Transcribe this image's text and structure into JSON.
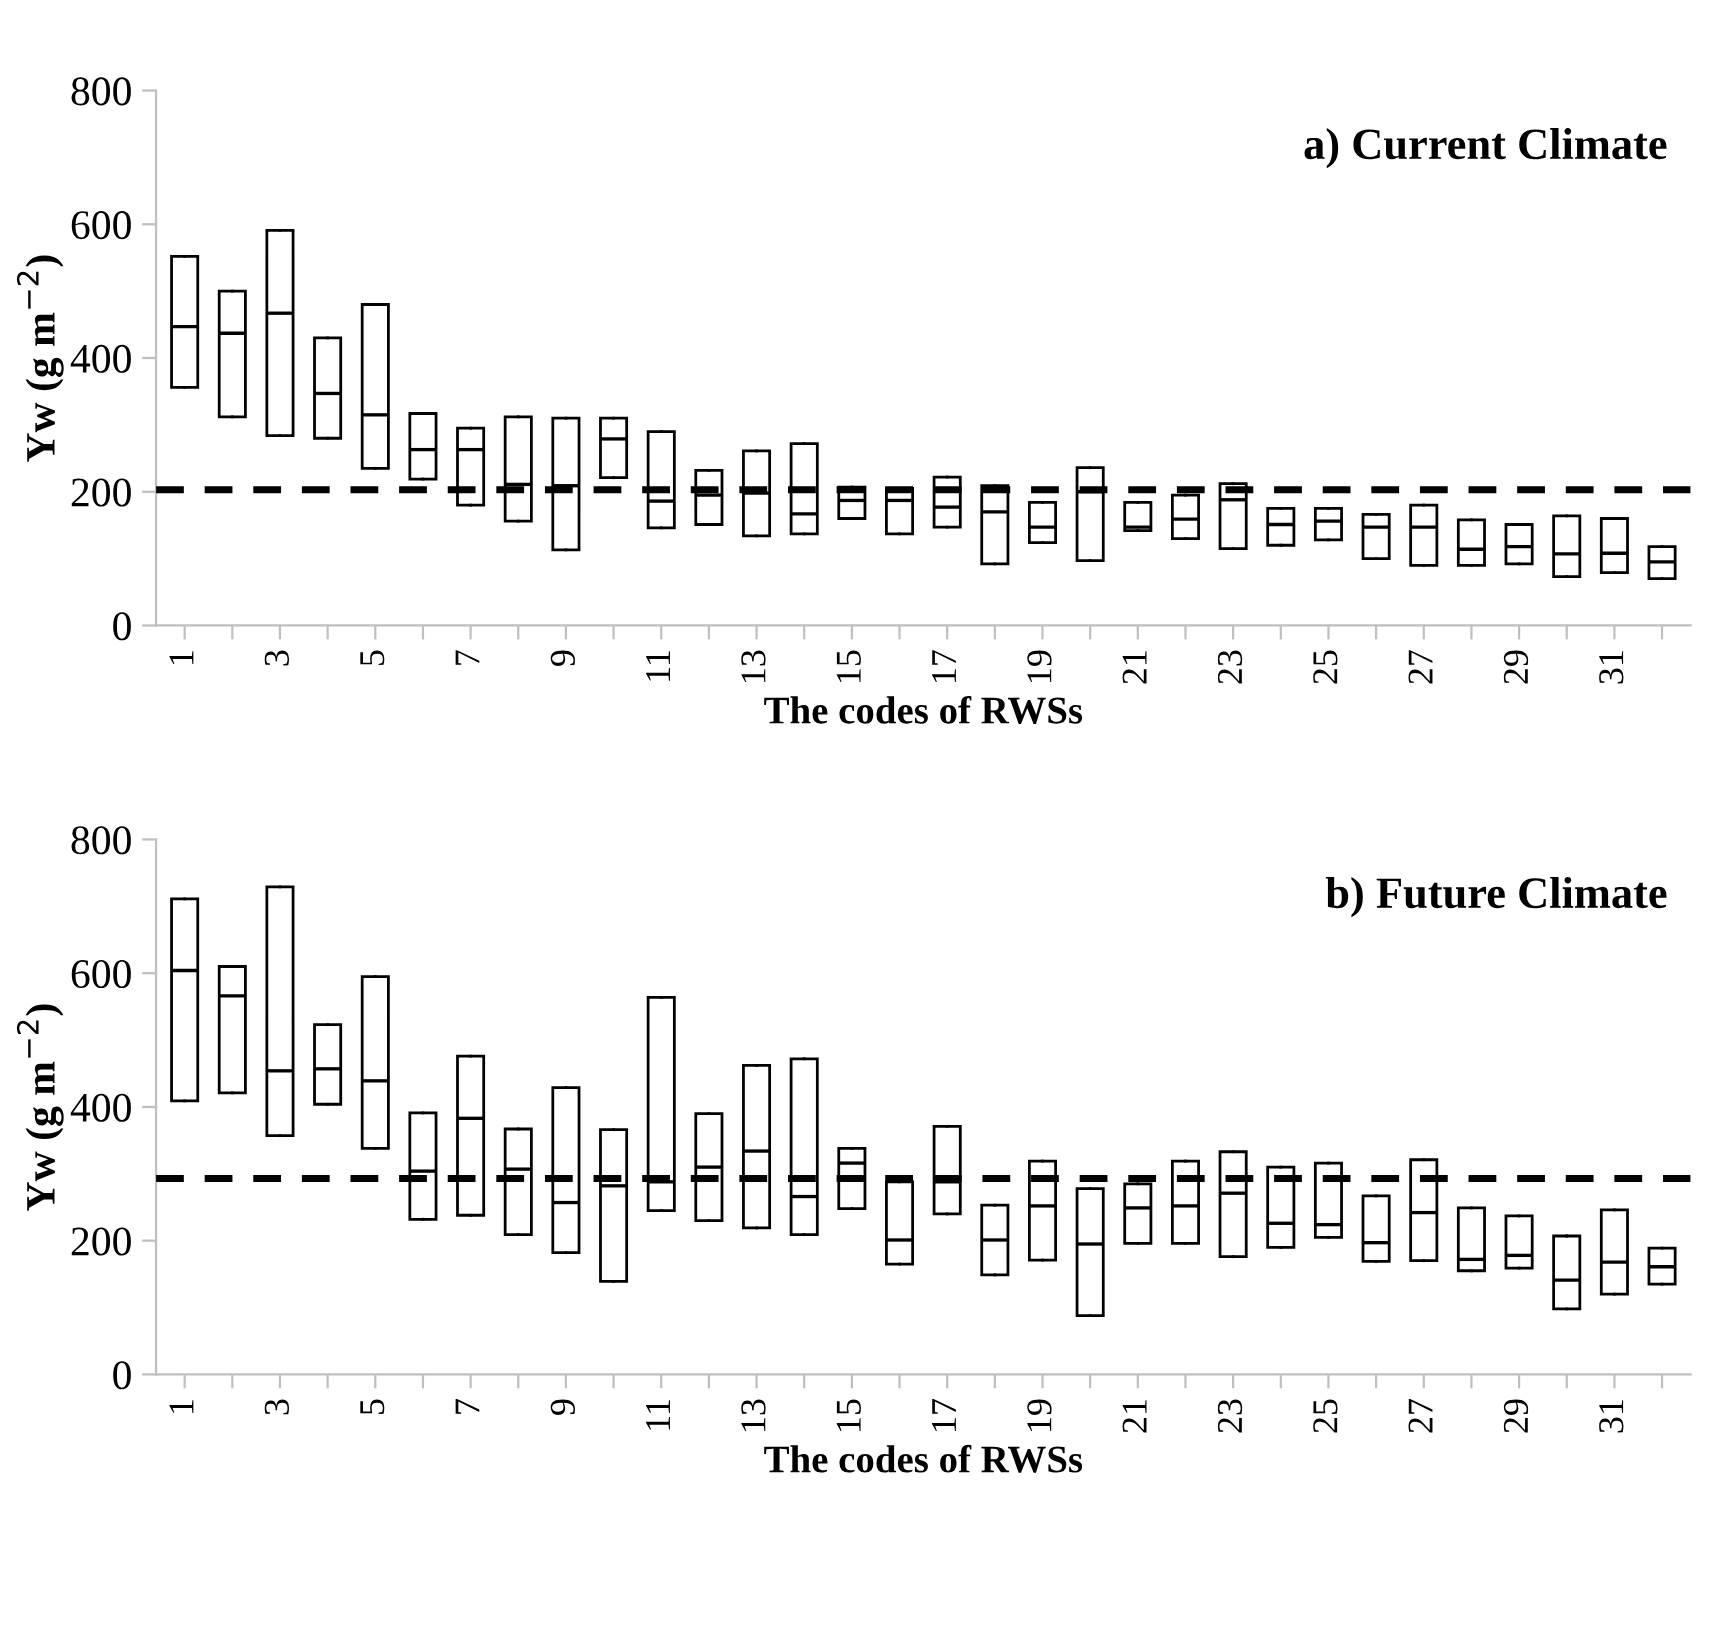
{
  "chart_data": [
    {
      "type": "box",
      "title": "a) Current Climate",
      "xlabel": "The codes of RWSs",
      "ylabel": "Yw (g m$^{−2}$)",
      "ylim": [
        0,
        800
      ],
      "yticks": [
        0,
        200,
        400,
        600,
        800
      ],
      "grid": false,
      "categories": [
        "1",
        null,
        "3",
        null,
        "5",
        null,
        "7",
        null,
        "9",
        null,
        "11",
        null,
        "13",
        null,
        "15",
        null,
        "17",
        null,
        "19",
        null,
        "21",
        null,
        "23",
        null,
        "25",
        null,
        "27",
        null,
        "29",
        null,
        "31",
        null
      ],
      "series": [
        {
          "color": "#000000",
          "boxes": [
            {
              "low": 356,
              "q1": 356,
              "median": 447,
              "q3": 552,
              "high": 552
            },
            {
              "low": 312,
              "q1": 312,
              "median": 437,
              "q3": 500,
              "high": 500
            },
            {
              "low": 284,
              "q1": 284,
              "median": 467,
              "q3": 591,
              "high": 591
            },
            {
              "low": 280,
              "q1": 280,
              "median": 347,
              "q3": 430,
              "high": 430
            },
            {
              "low": 235,
              "q1": 235,
              "median": 315,
              "q3": 480,
              "high": 480
            },
            {
              "low": 219,
              "q1": 219,
              "median": 263,
              "q3": 317,
              "high": 317
            },
            {
              "low": 180,
              "q1": 180,
              "median": 263,
              "q3": 295,
              "high": 295
            },
            {
              "low": 156,
              "q1": 156,
              "median": 211,
              "q3": 312,
              "high": 312
            },
            {
              "low": 113,
              "q1": 113,
              "median": 209,
              "q3": 310,
              "high": 310
            },
            {
              "low": 221,
              "q1": 221,
              "median": 279,
              "q3": 310,
              "high": 310
            },
            {
              "low": 146,
              "q1": 146,
              "median": 186,
              "q3": 290,
              "high": 290
            },
            {
              "low": 151,
              "q1": 151,
              "median": 195,
              "q3": 232,
              "high": 232
            },
            {
              "low": 134,
              "q1": 134,
              "median": 198,
              "q3": 261,
              "high": 261
            },
            {
              "low": 137,
              "q1": 137,
              "median": 167,
              "q3": 272,
              "high": 272
            },
            {
              "low": 160,
              "q1": 160,
              "median": 187,
              "q3": 207,
              "high": 207
            },
            {
              "low": 137,
              "q1": 137,
              "median": 187,
              "q3": 205,
              "high": 205
            },
            {
              "low": 147,
              "q1": 147,
              "median": 177,
              "q3": 222,
              "high": 222
            },
            {
              "low": 92,
              "q1": 92,
              "median": 170,
              "q3": 209,
              "high": 209
            },
            {
              "low": 124,
              "q1": 124,
              "median": 147,
              "q3": 184,
              "high": 184
            },
            {
              "low": 97,
              "q1": 97,
              "median": 200,
              "q3": 236,
              "high": 236
            },
            {
              "low": 142,
              "q1": 142,
              "median": 147,
              "q3": 184,
              "high": 184
            },
            {
              "low": 130,
              "q1": 130,
              "median": 159,
              "q3": 195,
              "high": 195
            },
            {
              "low": 115,
              "q1": 115,
              "median": 188,
              "q3": 212,
              "high": 212
            },
            {
              "low": 120,
              "q1": 120,
              "median": 151,
              "q3": 175,
              "high": 175
            },
            {
              "low": 128,
              "q1": 128,
              "median": 156,
              "q3": 175,
              "high": 175
            },
            {
              "low": 100,
              "q1": 100,
              "median": 147,
              "q3": 166,
              "high": 166
            },
            {
              "low": 90,
              "q1": 90,
              "median": 147,
              "q3": 180,
              "high": 180
            },
            {
              "low": 90,
              "q1": 90,
              "median": 114,
              "q3": 158,
              "high": 158
            },
            {
              "low": 92,
              "q1": 92,
              "median": 118,
              "q3": 151,
              "high": 151
            },
            {
              "low": 73,
              "q1": 73,
              "median": 107,
              "q3": 164,
              "high": 164
            },
            {
              "low": 79,
              "q1": 79,
              "median": 108,
              "q3": 160,
              "high": 160
            },
            {
              "low": 70,
              "q1": 70,
              "median": 95,
              "q3": 118,
              "high": 118
            }
          ]
        }
      ],
      "ref_lines": [
        {
          "axis": "y",
          "value": 203,
          "color": "#000000",
          "line_style": "dashed"
        }
      ]
    },
    {
      "type": "box",
      "title": "b) Future Climate",
      "xlabel": "The codes of RWSs",
      "ylabel": "Yw (g m$^{−2}$)",
      "ylim": [
        0,
        800
      ],
      "yticks": [
        0,
        200,
        400,
        600,
        800
      ],
      "grid": false,
      "categories": [
        "1",
        null,
        "3",
        null,
        "5",
        null,
        "7",
        null,
        "9",
        null,
        "11",
        null,
        "13",
        null,
        "15",
        null,
        "17",
        null,
        "19",
        null,
        "21",
        null,
        "23",
        null,
        "25",
        null,
        "27",
        null,
        "29",
        null,
        "31",
        null
      ],
      "series": [
        {
          "color": "#000000",
          "boxes": [
            {
              "low": 409,
              "q1": 409,
              "median": 604,
              "q3": 711,
              "high": 711
            },
            {
              "low": 421,
              "q1": 421,
              "median": 566,
              "q3": 610,
              "high": 610
            },
            {
              "low": 357,
              "q1": 357,
              "median": 454,
              "q3": 729,
              "high": 729
            },
            {
              "low": 404,
              "q1": 404,
              "median": 457,
              "q3": 523,
              "high": 523
            },
            {
              "low": 338,
              "q1": 338,
              "median": 439,
              "q3": 595,
              "high": 595
            },
            {
              "low": 232,
              "q1": 232,
              "median": 304,
              "q3": 391,
              "high": 391
            },
            {
              "low": 238,
              "q1": 238,
              "median": 383,
              "q3": 476,
              "high": 476
            },
            {
              "low": 209,
              "q1": 209,
              "median": 307,
              "q3": 367,
              "high": 367
            },
            {
              "low": 182,
              "q1": 182,
              "median": 257,
              "q3": 429,
              "high": 429
            },
            {
              "low": 139,
              "q1": 139,
              "median": 282,
              "q3": 366,
              "high": 366
            },
            {
              "low": 245,
              "q1": 245,
              "median": 288,
              "q3": 564,
              "high": 564
            },
            {
              "low": 230,
              "q1": 230,
              "median": 310,
              "q3": 390,
              "high": 390
            },
            {
              "low": 219,
              "q1": 219,
              "median": 334,
              "q3": 462,
              "high": 462
            },
            {
              "low": 209,
              "q1": 209,
              "median": 266,
              "q3": 472,
              "high": 472
            },
            {
              "low": 248,
              "q1": 248,
              "median": 316,
              "q3": 338,
              "high": 338
            },
            {
              "low": 165,
              "q1": 165,
              "median": 201,
              "q3": 288,
              "high": 288
            },
            {
              "low": 240,
              "q1": 240,
              "median": 288,
              "q3": 371,
              "high": 371
            },
            {
              "low": 149,
              "q1": 149,
              "median": 201,
              "q3": 253,
              "high": 253
            },
            {
              "low": 171,
              "q1": 171,
              "median": 252,
              "q3": 319,
              "high": 319
            },
            {
              "low": 88,
              "q1": 88,
              "median": 195,
              "q3": 278,
              "high": 278
            },
            {
              "low": 196,
              "q1": 196,
              "median": 249,
              "q3": 285,
              "high": 285
            },
            {
              "low": 196,
              "q1": 196,
              "median": 252,
              "q3": 319,
              "high": 319
            },
            {
              "low": 176,
              "q1": 176,
              "median": 271,
              "q3": 333,
              "high": 333
            },
            {
              "low": 190,
              "q1": 190,
              "median": 226,
              "q3": 310,
              "high": 310
            },
            {
              "low": 205,
              "q1": 205,
              "median": 224,
              "q3": 316,
              "high": 316
            },
            {
              "low": 169,
              "q1": 169,
              "median": 197,
              "q3": 267,
              "high": 267
            },
            {
              "low": 170,
              "q1": 170,
              "median": 242,
              "q3": 321,
              "high": 321
            },
            {
              "low": 155,
              "q1": 155,
              "median": 172,
              "q3": 249,
              "high": 249
            },
            {
              "low": 159,
              "q1": 159,
              "median": 178,
              "q3": 237,
              "high": 237
            },
            {
              "low": 98,
              "q1": 98,
              "median": 141,
              "q3": 207,
              "high": 207
            },
            {
              "low": 120,
              "q1": 120,
              "median": 168,
              "q3": 246,
              "high": 246
            },
            {
              "low": 135,
              "q1": 135,
              "median": 161,
              "q3": 189,
              "high": 189
            }
          ]
        }
      ],
      "ref_lines": [
        {
          "axis": "y",
          "value": 293,
          "color": "#000000",
          "line_style": "dashed"
        }
      ]
    }
  ]
}
